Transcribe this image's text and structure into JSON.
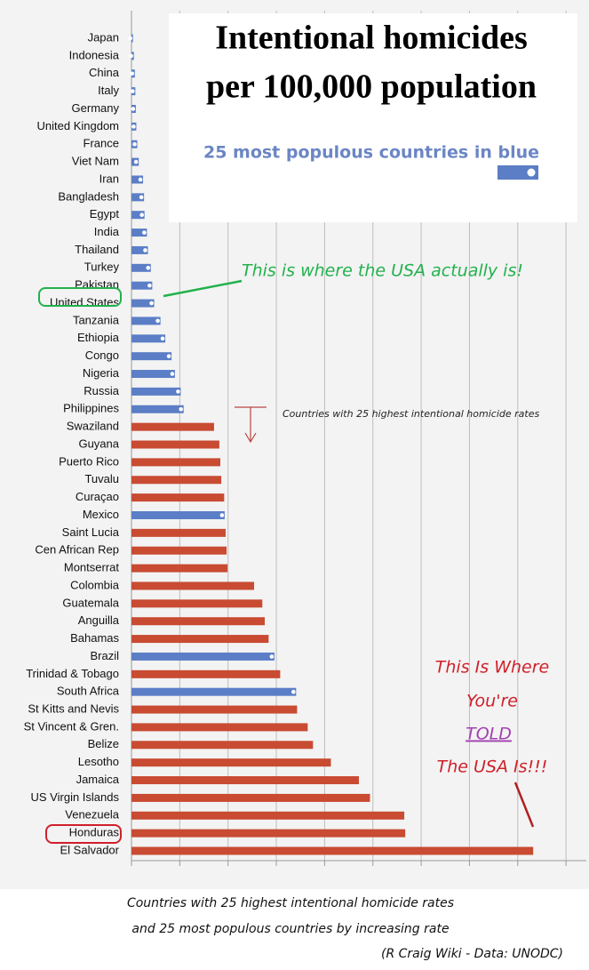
{
  "chart_data": {
    "type": "barh",
    "title": [
      "Intentional homicides",
      "per 100,000 population"
    ],
    "subtitle": "25 most populous countries in blue",
    "categories": [
      "Japan",
      "Indonesia",
      "China",
      "Italy",
      "Germany",
      "United Kingdom",
      "France",
      "Viet Nam",
      "Iran",
      "Bangladesh",
      "Egypt",
      "India",
      "Thailand",
      "Turkey",
      "Pakistan",
      "United States",
      "Tanzania",
      "Ethiopia",
      "Congo",
      "Nigeria",
      "Russia",
      "Philippines",
      "Swaziland",
      "Guyana",
      "Puerto Rico",
      "Tuvalu",
      "Curaçao",
      "Mexico",
      "Saint Lucia",
      "Cen African Rep",
      "Montserrat",
      "Colombia",
      "Guatemala",
      "Anguilla",
      "Bahamas",
      "Brazil",
      "Trinidad & Tobago",
      "South Africa",
      "St Kitts and Nevis",
      "St Vincent & Gren.",
      "Belize",
      "Lesotho",
      "Jamaica",
      "US Virgin Islands",
      "Venezuela",
      "Honduras",
      "El Salvador"
    ],
    "values": [
      0.3,
      0.5,
      0.7,
      0.8,
      0.9,
      1.0,
      1.2,
      1.5,
      2.4,
      2.6,
      2.7,
      3.2,
      3.4,
      4.0,
      4.3,
      4.7,
      6.0,
      7.0,
      8.3,
      9.0,
      10.2,
      10.8,
      17.1,
      18.2,
      18.4,
      18.6,
      19.2,
      19.3,
      19.5,
      19.7,
      19.9,
      25.4,
      27.1,
      27.6,
      28.4,
      29.6,
      30.8,
      34.1,
      34.3,
      36.5,
      37.6,
      41.3,
      47.1,
      49.4,
      56.5,
      56.7,
      83.2
    ],
    "colors": [
      "#5b7ec6",
      "#5b7ec6",
      "#5b7ec6",
      "#5b7ec6",
      "#5b7ec6",
      "#5b7ec6",
      "#5b7ec6",
      "#5b7ec6",
      "#5b7ec6",
      "#5b7ec6",
      "#5b7ec6",
      "#5b7ec6",
      "#5b7ec6",
      "#5b7ec6",
      "#5b7ec6",
      "#5b7ec6",
      "#5b7ec6",
      "#5b7ec6",
      "#5b7ec6",
      "#5b7ec6",
      "#5b7ec6",
      "#5b7ec6",
      "#c84b32",
      "#c84b32",
      "#c84b32",
      "#c84b32",
      "#c84b32",
      "#5b7ec6",
      "#c84b32",
      "#c84b32",
      "#c84b32",
      "#c84b32",
      "#c84b32",
      "#c84b32",
      "#c84b32",
      "#5b7ec6",
      "#c84b32",
      "#5b7ec6",
      "#c84b32",
      "#c84b32",
      "#c84b32",
      "#c84b32",
      "#c84b32",
      "#c84b32",
      "#c84b32",
      "#c84b32",
      "#c84b32"
    ],
    "xlim": [
      0,
      92
    ],
    "xticks": [
      0,
      10,
      20,
      30,
      40,
      50,
      60,
      70,
      80,
      90
    ],
    "grid": true
  },
  "annotations": {
    "usa_actual": "This is where the USA actually is!",
    "highest_rates": "Countries with 25 highest intentional homicide rates",
    "told": [
      "This Is Where",
      "You're",
      "TOLD",
      "The USA Is!!!"
    ]
  },
  "footer": [
    "Countries with 25 highest intentional homicide rates",
    "and 25 most populous countries by increasing rate",
    "(R Craig Wiki - Data: UNODC)"
  ]
}
